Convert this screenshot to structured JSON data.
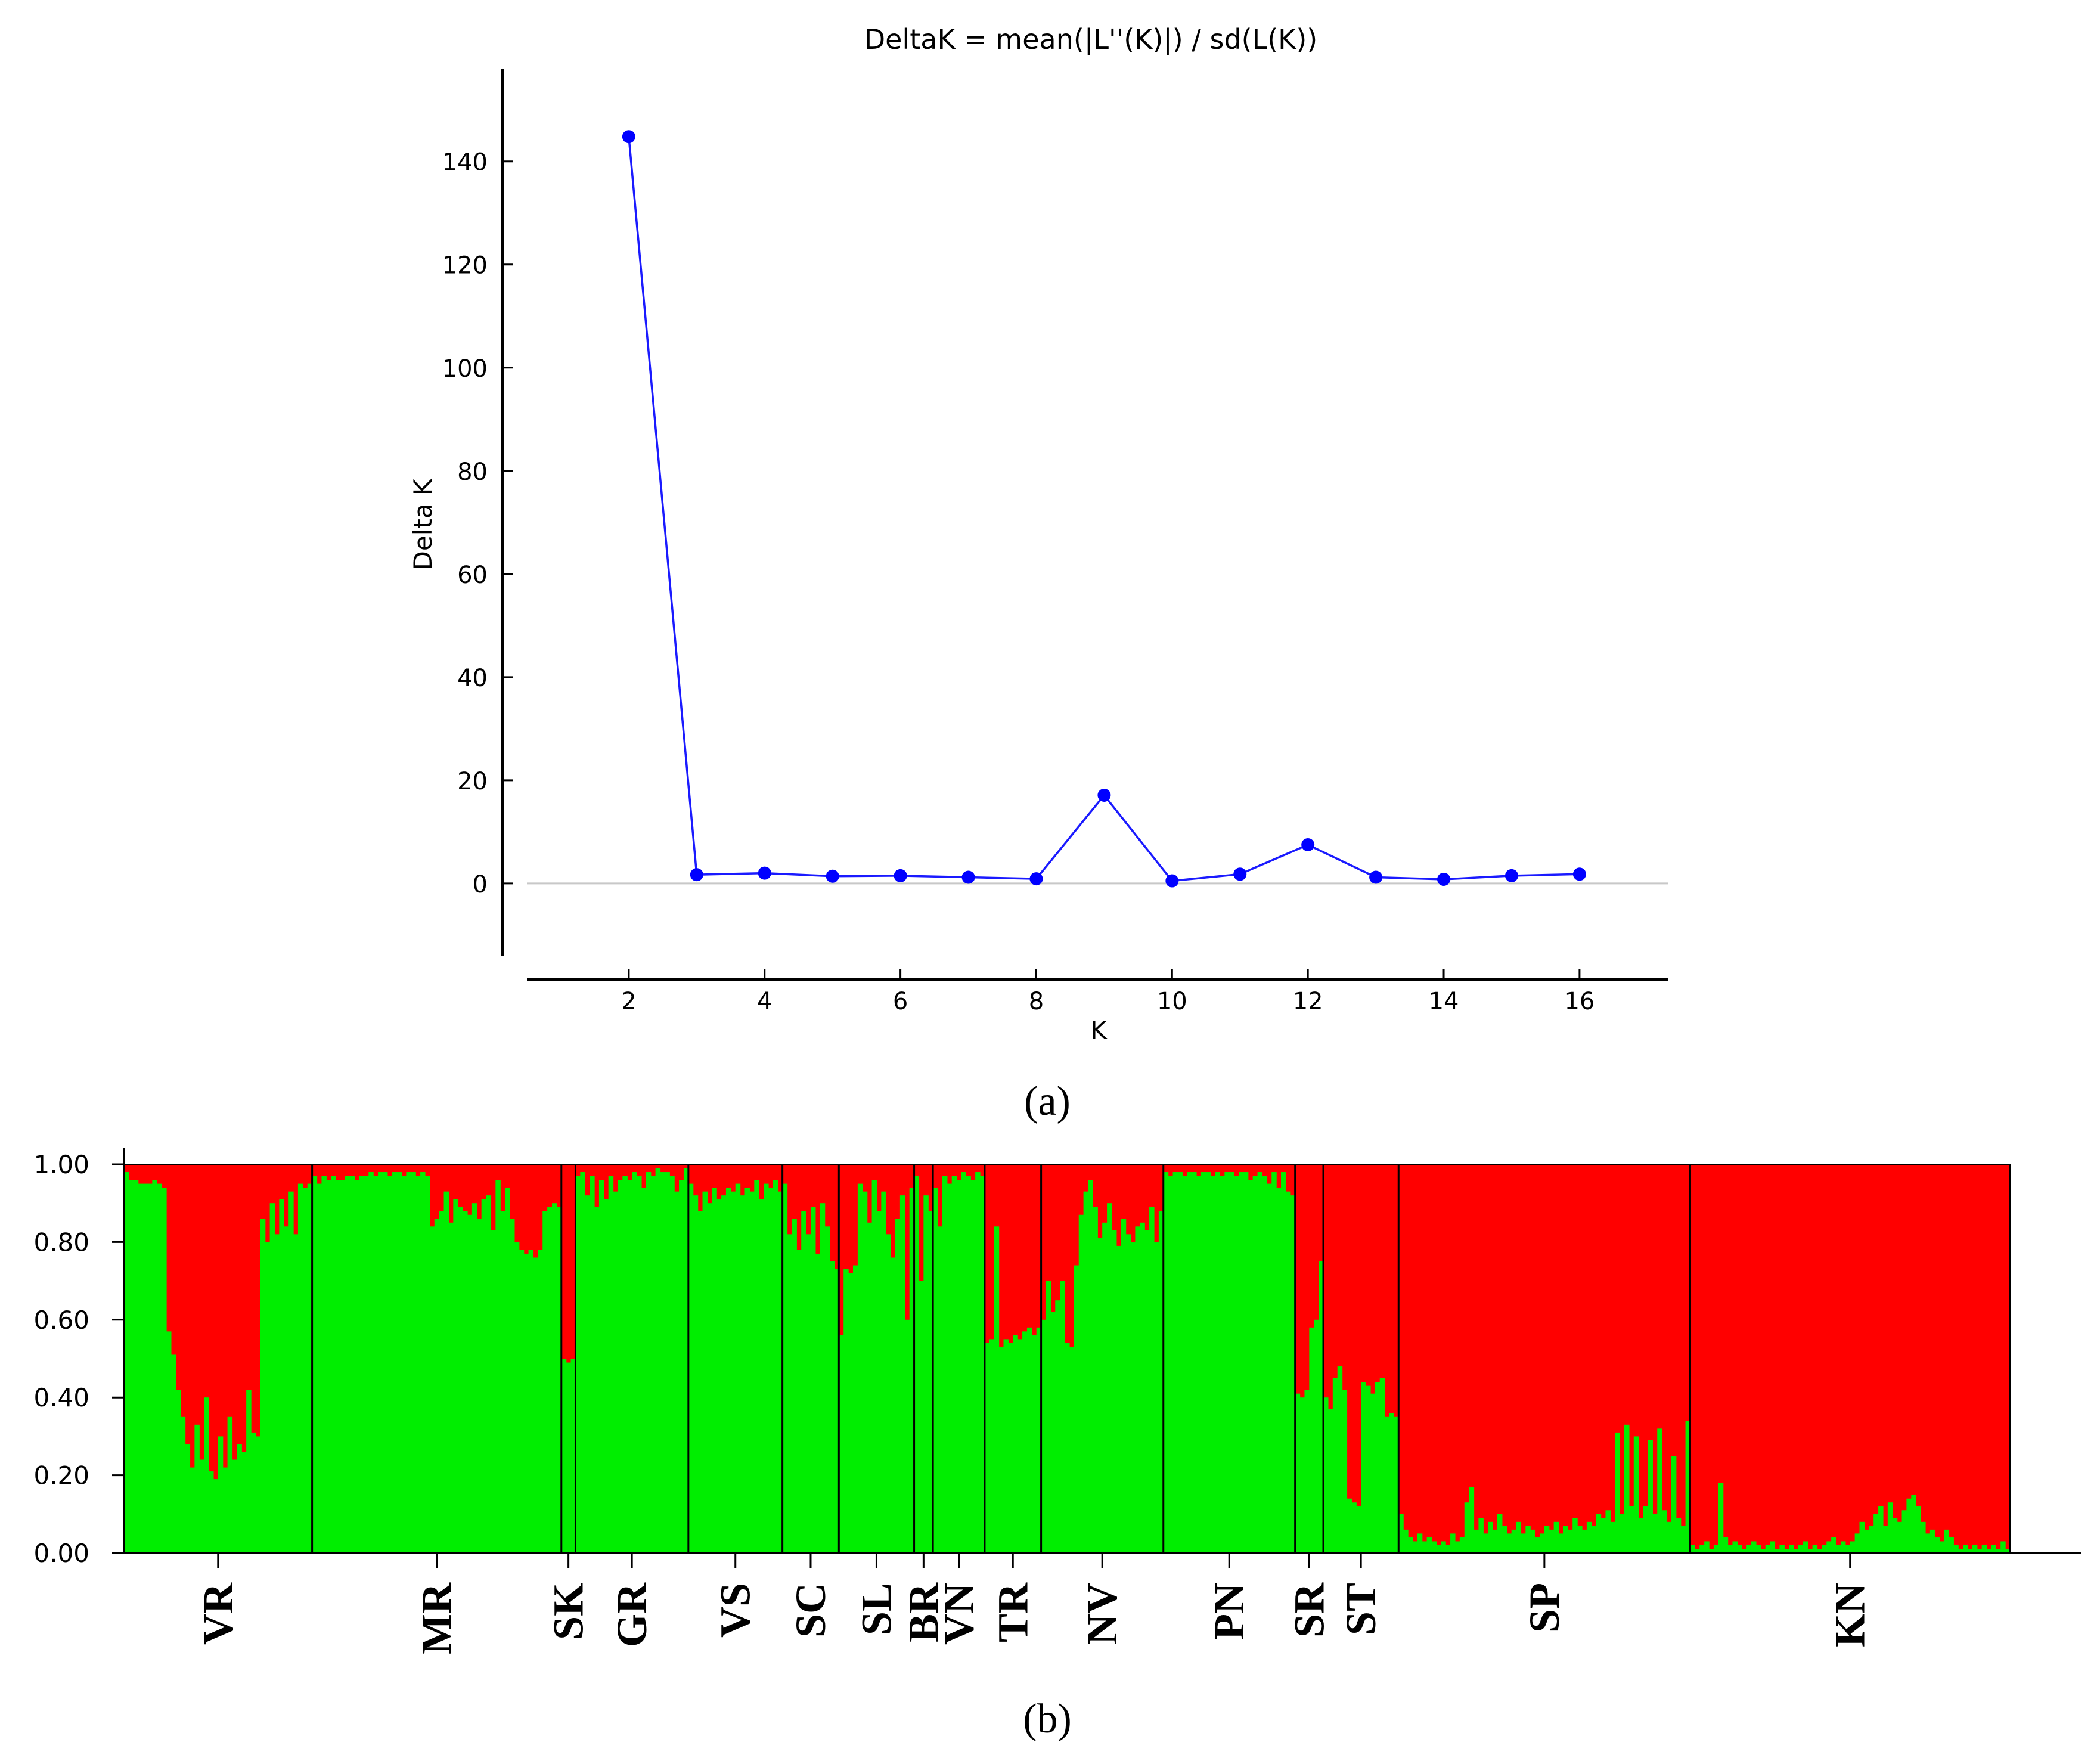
{
  "panel_a": {
    "caption": "(a)"
  },
  "panel_b": {
    "caption": "(b)"
  },
  "colors": {
    "line": "#1a1aff",
    "marker": "#0000ff",
    "cluster1": "#00ee00",
    "cluster2": "#ff0000",
    "zero_line": "#c8c8c8",
    "axis": "#000000"
  },
  "chart_data": [
    {
      "type": "line",
      "title": "DeltaK = mean(|L''(K)|) / sd(L(K))",
      "xlabel": "K",
      "ylabel": "Delta K",
      "xlim": [
        0.5,
        17.3
      ],
      "ylim": [
        -14,
        158
      ],
      "xticks": [
        2,
        4,
        6,
        8,
        10,
        12,
        14,
        16
      ],
      "yticks": [
        0,
        20,
        40,
        60,
        80,
        100,
        120,
        140
      ],
      "zero_line": true,
      "grid": false,
      "series": [
        {
          "x": [
            2,
            3,
            4,
            5,
            6,
            7,
            8,
            9,
            10,
            11,
            12,
            13,
            14,
            15,
            16
          ],
          "values": [
            144.8,
            1.7,
            2.0,
            1.4,
            1.5,
            1.2,
            0.9,
            17.1,
            0.5,
            1.8,
            7.5,
            1.2,
            0.8,
            1.5,
            1.8
          ]
        }
      ]
    },
    {
      "type": "bar",
      "stacked": true,
      "ylim": [
        0,
        1
      ],
      "yticks": [
        "0.00",
        "0.20",
        "0.40",
        "0.60",
        "0.80",
        "1.00"
      ],
      "populations": [
        {
          "label": "VR",
          "green": [
            0.98,
            0.96,
            0.96,
            0.95,
            0.95,
            0.95,
            0.96,
            0.95,
            0.94,
            0.57,
            0.51,
            0.42,
            0.35,
            0.28,
            0.22,
            0.33,
            0.24,
            0.4,
            0.21,
            0.19,
            0.3,
            0.22,
            0.35,
            0.24,
            0.28,
            0.26,
            0.42,
            0.31,
            0.3,
            0.86,
            0.8,
            0.9,
            0.82,
            0.91,
            0.84,
            0.93,
            0.82,
            0.95,
            0.94,
            0.95
          ]
        },
        {
          "label": "MR",
          "green": [
            0.97,
            0.95,
            0.97,
            0.96,
            0.97,
            0.96,
            0.96,
            0.97,
            0.97,
            0.96,
            0.97,
            0.97,
            0.98,
            0.97,
            0.98,
            0.98,
            0.97,
            0.98,
            0.98,
            0.97,
            0.98,
            0.98,
            0.97,
            0.98,
            0.97,
            0.84,
            0.86,
            0.88,
            0.93,
            0.85,
            0.91,
            0.89,
            0.88,
            0.87,
            0.9,
            0.86,
            0.91,
            0.92,
            0.83,
            0.96,
            0.88,
            0.94,
            0.86,
            0.8,
            0.78,
            0.77,
            0.78,
            0.76,
            0.78,
            0.88,
            0.89,
            0.9,
            0.89
          ]
        },
        {
          "label": "SK",
          "green": [
            0.5,
            0.49,
            0.5
          ]
        },
        {
          "label": "GR",
          "green": [
            0.97,
            0.98,
            0.92,
            0.97,
            0.89,
            0.96,
            0.91,
            0.97,
            0.93,
            0.96,
            0.97,
            0.96,
            0.98,
            0.97,
            0.94,
            0.98,
            0.97,
            0.99,
            0.98,
            0.98,
            0.97,
            0.93,
            0.96,
            0.99
          ]
        },
        {
          "label": "VS",
          "green": [
            0.95,
            0.92,
            0.88,
            0.93,
            0.9,
            0.94,
            0.91,
            0.92,
            0.94,
            0.93,
            0.95,
            0.92,
            0.94,
            0.93,
            0.96,
            0.91,
            0.95,
            0.94,
            0.96,
            0.93
          ]
        },
        {
          "label": "SC",
          "green": [
            0.95,
            0.82,
            0.86,
            0.78,
            0.88,
            0.82,
            0.89,
            0.77,
            0.9,
            0.84,
            0.75,
            0.73
          ]
        },
        {
          "label": "SL",
          "green": [
            0.56,
            0.73,
            0.72,
            0.74,
            0.95,
            0.93,
            0.85,
            0.96,
            0.88,
            0.93,
            0.82,
            0.76,
            0.86,
            0.92,
            0.6,
            0.94
          ]
        },
        {
          "label": "BR",
          "green": [
            0.97,
            0.7,
            0.92,
            0.88
          ]
        },
        {
          "label": "VN",
          "green": [
            0.94,
            0.84,
            0.97,
            0.95,
            0.97,
            0.96,
            0.98,
            0.97,
            0.96,
            0.98,
            0.97
          ]
        },
        {
          "label": "TR",
          "green": [
            0.54,
            0.55,
            0.84,
            0.53,
            0.55,
            0.54,
            0.56,
            0.55,
            0.57,
            0.58,
            0.56,
            0.58
          ]
        },
        {
          "label": "NV",
          "green": [
            0.6,
            0.7,
            0.62,
            0.65,
            0.7,
            0.54,
            0.53,
            0.74,
            0.87,
            0.93,
            0.96,
            0.89,
            0.81,
            0.85,
            0.9,
            0.83,
            0.79,
            0.86,
            0.82,
            0.8,
            0.84,
            0.85,
            0.83,
            0.89,
            0.8,
            0.88
          ]
        },
        {
          "label": "PN",
          "green": [
            0.98,
            0.97,
            0.98,
            0.98,
            0.97,
            0.98,
            0.98,
            0.97,
            0.98,
            0.98,
            0.97,
            0.98,
            0.97,
            0.98,
            0.98,
            0.97,
            0.98,
            0.98,
            0.96,
            0.97,
            0.98,
            0.97,
            0.95,
            0.98,
            0.94,
            0.98,
            0.93,
            0.92
          ]
        },
        {
          "label": "SR",
          "green": [
            0.41,
            0.4,
            0.42,
            0.58,
            0.6,
            0.75
          ]
        },
        {
          "label": "ST",
          "green": [
            0.4,
            0.37,
            0.45,
            0.48,
            0.42,
            0.14,
            0.13,
            0.12,
            0.44,
            0.43,
            0.41,
            0.44,
            0.45,
            0.35,
            0.36,
            0.35
          ]
        },
        {
          "label": "SP",
          "green": [
            0.1,
            0.06,
            0.04,
            0.03,
            0.05,
            0.03,
            0.04,
            0.03,
            0.02,
            0.03,
            0.02,
            0.05,
            0.03,
            0.04,
            0.13,
            0.17,
            0.06,
            0.09,
            0.05,
            0.08,
            0.06,
            0.1,
            0.07,
            0.05,
            0.06,
            0.08,
            0.05,
            0.07,
            0.06,
            0.04,
            0.05,
            0.07,
            0.06,
            0.08,
            0.05,
            0.07,
            0.06,
            0.09,
            0.07,
            0.06,
            0.08,
            0.07,
            0.1,
            0.09,
            0.11,
            0.08,
            0.31,
            0.1,
            0.33,
            0.12,
            0.3,
            0.09,
            0.12,
            0.29,
            0.1,
            0.32,
            0.11,
            0.08,
            0.25,
            0.09,
            0.07,
            0.34
          ]
        },
        {
          "label": "KN",
          "green": [
            0.02,
            0.01,
            0.02,
            0.03,
            0.01,
            0.02,
            0.18,
            0.04,
            0.02,
            0.03,
            0.02,
            0.01,
            0.02,
            0.03,
            0.02,
            0.01,
            0.02,
            0.03,
            0.01,
            0.02,
            0.01,
            0.02,
            0.01,
            0.02,
            0.03,
            0.01,
            0.02,
            0.01,
            0.02,
            0.03,
            0.04,
            0.02,
            0.03,
            0.02,
            0.03,
            0.05,
            0.08,
            0.06,
            0.07,
            0.1,
            0.12,
            0.07,
            0.13,
            0.09,
            0.08,
            0.11,
            0.14,
            0.15,
            0.12,
            0.08,
            0.05,
            0.06,
            0.04,
            0.03,
            0.06,
            0.04,
            0.02,
            0.01,
            0.02,
            0.01,
            0.02,
            0.01,
            0.02,
            0.01,
            0.02,
            0.01,
            0.03,
            0.01
          ]
        }
      ]
    }
  ]
}
